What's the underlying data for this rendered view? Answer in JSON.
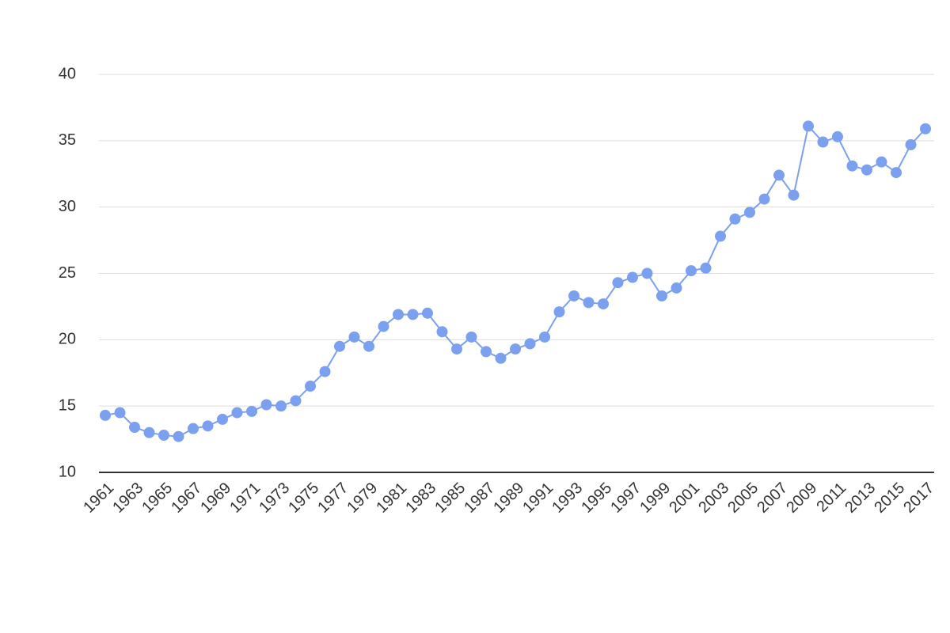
{
  "chart_data": {
    "type": "line",
    "x": [
      1961,
      1962,
      1963,
      1964,
      1965,
      1966,
      1967,
      1968,
      1969,
      1970,
      1971,
      1972,
      1973,
      1974,
      1975,
      1976,
      1977,
      1978,
      1979,
      1980,
      1981,
      1982,
      1983,
      1984,
      1985,
      1986,
      1987,
      1988,
      1989,
      1990,
      1991,
      1992,
      1993,
      1994,
      1995,
      1996,
      1997,
      1998,
      1999,
      2000,
      2001,
      2002,
      2003,
      2004,
      2005,
      2006,
      2007,
      2008,
      2009,
      2010,
      2011,
      2012,
      2013,
      2014,
      2015,
      2016,
      2017
    ],
    "values": [
      14.3,
      14.5,
      13.4,
      13.0,
      12.8,
      12.7,
      13.3,
      13.5,
      14.0,
      14.5,
      14.6,
      15.1,
      15.0,
      15.4,
      16.5,
      17.6,
      19.5,
      20.2,
      19.5,
      21.0,
      21.9,
      21.9,
      22.0,
      20.6,
      19.3,
      20.2,
      19.1,
      18.6,
      19.3,
      19.7,
      20.2,
      22.1,
      23.3,
      22.8,
      22.7,
      24.3,
      24.7,
      25.0,
      23.3,
      23.9,
      25.2,
      25.4,
      27.8,
      29.1,
      29.6,
      30.6,
      32.4,
      30.9,
      36.1,
      34.9,
      35.3,
      33.1,
      32.8,
      33.4,
      32.6,
      34.7,
      35.9
    ],
    "color": "#7ba0f0",
    "xlim": [
      1961,
      2017
    ],
    "xticks": [
      1961,
      1963,
      1965,
      1967,
      1969,
      1971,
      1973,
      1975,
      1977,
      1979,
      1981,
      1983,
      1985,
      1987,
      1989,
      1991,
      1993,
      1995,
      1997,
      1999,
      2001,
      2003,
      2005,
      2007,
      2009,
      2011,
      2013,
      2015,
      2017
    ],
    "ylim": [
      10,
      40
    ],
    "yticks": [
      10,
      15,
      20,
      25,
      30,
      35,
      40
    ],
    "grid": true
  }
}
